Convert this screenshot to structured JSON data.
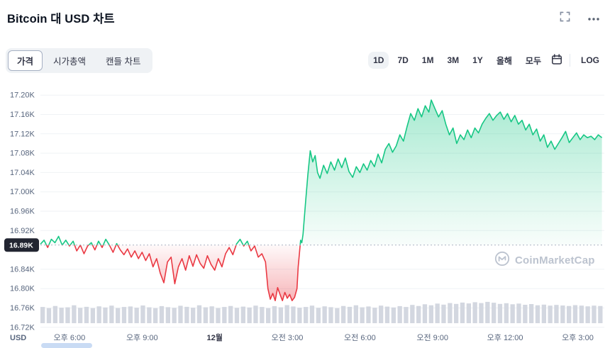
{
  "header": {
    "title": "Bitcoin 대 USD 차트"
  },
  "icons": {
    "fullscreen": "corner-brackets",
    "more_options": "ellipsis-dots",
    "calendar": "calendar-outline",
    "watermark_logo": "cmc-m-in-circle"
  },
  "toolbar": {
    "view_tabs": [
      {
        "label": "가격",
        "active": true
      },
      {
        "label": "시가총액",
        "active": false
      },
      {
        "label": "캔들 차트",
        "active": false
      }
    ],
    "range_buttons": [
      {
        "label": "1D",
        "active": true
      },
      {
        "label": "7D",
        "active": false
      },
      {
        "label": "1M",
        "active": false
      },
      {
        "label": "3M",
        "active": false
      },
      {
        "label": "1Y",
        "active": false
      },
      {
        "label": "올해",
        "active": false
      },
      {
        "label": "모두",
        "active": false
      }
    ],
    "log_label": "LOG"
  },
  "watermark": {
    "text": "CoinMarketCap"
  },
  "chart_data": {
    "type": "area",
    "title": "Bitcoin 대 USD 차트",
    "unit_label": "USD",
    "baseline": 16.89,
    "baseline_label": "16.89K",
    "xlim": [
      0,
      23.3
    ],
    "ylim": [
      16.705,
      17.215
    ],
    "grid": true,
    "y_ticks": [
      {
        "value": 17.2,
        "label": "17.20K"
      },
      {
        "value": 17.16,
        "label": "17.16K"
      },
      {
        "value": 17.12,
        "label": "17.12K"
      },
      {
        "value": 17.08,
        "label": "17.08K"
      },
      {
        "value": 17.04,
        "label": "17.04K"
      },
      {
        "value": 17.0,
        "label": "17.00K"
      },
      {
        "value": 16.96,
        "label": "16.96K"
      },
      {
        "value": 16.92,
        "label": "16.92K"
      },
      {
        "value": 16.84,
        "label": "16.84K"
      },
      {
        "value": 16.8,
        "label": "16.80K"
      },
      {
        "value": 16.76,
        "label": "16.76K"
      },
      {
        "value": 16.72,
        "label": "16.72K"
      }
    ],
    "x_ticks": [
      {
        "t": 1.2,
        "label": "오후 6:00",
        "bold": false
      },
      {
        "t": 4.2,
        "label": "오후 9:00",
        "bold": false
      },
      {
        "t": 7.2,
        "label": "12월",
        "bold": true
      },
      {
        "t": 10.2,
        "label": "오전 3:00",
        "bold": false
      },
      {
        "t": 13.2,
        "label": "오전 6:00",
        "bold": false
      },
      {
        "t": 16.2,
        "label": "오전 9:00",
        "bold": false
      },
      {
        "t": 19.2,
        "label": "오후 12:00",
        "bold": false
      },
      {
        "t": 22.2,
        "label": "오후 3:00",
        "bold": false
      }
    ],
    "colors": {
      "up": "#16c784",
      "down": "#ea3943",
      "grid": "#eff2f5",
      "axis_text": "#58667e",
      "badge_bg": "#222531",
      "volume": "#d3d7e0",
      "baseline_line": "#a9b1c1"
    },
    "series": [
      {
        "name": "BTC/USD price (K)",
        "points": [
          [
            0,
            16.892
          ],
          [
            0.15,
            16.9
          ],
          [
            0.3,
            16.885
          ],
          [
            0.45,
            16.902
          ],
          [
            0.6,
            16.895
          ],
          [
            0.75,
            16.908
          ],
          [
            0.9,
            16.89
          ],
          [
            1.05,
            16.9
          ],
          [
            1.2,
            16.888
          ],
          [
            1.35,
            16.898
          ],
          [
            1.5,
            16.878
          ],
          [
            1.65,
            16.89
          ],
          [
            1.8,
            16.872
          ],
          [
            1.95,
            16.888
          ],
          [
            2.1,
            16.895
          ],
          [
            2.25,
            16.88
          ],
          [
            2.4,
            16.898
          ],
          [
            2.55,
            16.885
          ],
          [
            2.7,
            16.902
          ],
          [
            2.85,
            16.89
          ],
          [
            3,
            16.875
          ],
          [
            3.15,
            16.893
          ],
          [
            3.3,
            16.88
          ],
          [
            3.45,
            16.87
          ],
          [
            3.6,
            16.882
          ],
          [
            3.75,
            16.865
          ],
          [
            3.9,
            16.878
          ],
          [
            4.05,
            16.862
          ],
          [
            4.2,
            16.875
          ],
          [
            4.35,
            16.858
          ],
          [
            4.5,
            16.872
          ],
          [
            4.65,
            16.845
          ],
          [
            4.8,
            16.862
          ],
          [
            4.95,
            16.832
          ],
          [
            5.1,
            16.812
          ],
          [
            5.25,
            16.855
          ],
          [
            5.4,
            16.865
          ],
          [
            5.55,
            16.81
          ],
          [
            5.7,
            16.845
          ],
          [
            5.85,
            16.862
          ],
          [
            6,
            16.838
          ],
          [
            6.15,
            16.868
          ],
          [
            6.3,
            16.846
          ],
          [
            6.45,
            16.87
          ],
          [
            6.6,
            16.852
          ],
          [
            6.75,
            16.842
          ],
          [
            6.9,
            16.868
          ],
          [
            7.05,
            16.85
          ],
          [
            7.2,
            16.838
          ],
          [
            7.35,
            16.862
          ],
          [
            7.5,
            16.845
          ],
          [
            7.65,
            16.872
          ],
          [
            7.8,
            16.885
          ],
          [
            7.95,
            16.87
          ],
          [
            8.1,
            16.892
          ],
          [
            8.25,
            16.902
          ],
          [
            8.4,
            16.888
          ],
          [
            8.55,
            16.898
          ],
          [
            8.7,
            16.878
          ],
          [
            8.85,
            16.888
          ],
          [
            9,
            16.865
          ],
          [
            9.15,
            16.872
          ],
          [
            9.3,
            16.855
          ],
          [
            9.4,
            16.8
          ],
          [
            9.5,
            16.778
          ],
          [
            9.6,
            16.79
          ],
          [
            9.7,
            16.775
          ],
          [
            9.8,
            16.802
          ],
          [
            9.9,
            16.788
          ],
          [
            10,
            16.775
          ],
          [
            10.1,
            16.792
          ],
          [
            10.2,
            16.78
          ],
          [
            10.3,
            16.788
          ],
          [
            10.4,
            16.775
          ],
          [
            10.5,
            16.782
          ],
          [
            10.6,
            16.8
          ],
          [
            10.65,
            16.845
          ],
          [
            10.7,
            16.872
          ],
          [
            10.75,
            16.9
          ],
          [
            10.8,
            16.895
          ],
          [
            10.85,
            16.912
          ],
          [
            10.95,
            16.975
          ],
          [
            11.05,
            17.035
          ],
          [
            11.15,
            17.085
          ],
          [
            11.25,
            17.062
          ],
          [
            11.35,
            17.075
          ],
          [
            11.45,
            17.04
          ],
          [
            11.55,
            17.028
          ],
          [
            11.7,
            17.055
          ],
          [
            11.85,
            17.038
          ],
          [
            12,
            17.062
          ],
          [
            12.15,
            17.045
          ],
          [
            12.3,
            17.068
          ],
          [
            12.45,
            17.05
          ],
          [
            12.6,
            17.07
          ],
          [
            12.75,
            17.042
          ],
          [
            12.9,
            17.03
          ],
          [
            13.05,
            17.052
          ],
          [
            13.2,
            17.04
          ],
          [
            13.35,
            17.058
          ],
          [
            13.5,
            17.045
          ],
          [
            13.65,
            17.065
          ],
          [
            13.8,
            17.052
          ],
          [
            13.95,
            17.078
          ],
          [
            14.1,
            17.06
          ],
          [
            14.25,
            17.088
          ],
          [
            14.4,
            17.1
          ],
          [
            14.55,
            17.082
          ],
          [
            14.7,
            17.095
          ],
          [
            14.85,
            17.118
          ],
          [
            15,
            17.105
          ],
          [
            15.15,
            17.135
          ],
          [
            15.3,
            17.162
          ],
          [
            15.45,
            17.148
          ],
          [
            15.6,
            17.172
          ],
          [
            15.75,
            17.155
          ],
          [
            15.9,
            17.178
          ],
          [
            16.05,
            17.165
          ],
          [
            16.15,
            17.19
          ],
          [
            16.3,
            17.172
          ],
          [
            16.45,
            17.155
          ],
          [
            16.6,
            17.168
          ],
          [
            16.75,
            17.14
          ],
          [
            16.9,
            17.118
          ],
          [
            17.05,
            17.132
          ],
          [
            17.2,
            17.1
          ],
          [
            17.35,
            17.118
          ],
          [
            17.5,
            17.108
          ],
          [
            17.65,
            17.128
          ],
          [
            17.8,
            17.112
          ],
          [
            17.95,
            17.132
          ],
          [
            18.1,
            17.122
          ],
          [
            18.25,
            17.14
          ],
          [
            18.4,
            17.152
          ],
          [
            18.55,
            17.162
          ],
          [
            18.7,
            17.148
          ],
          [
            18.85,
            17.158
          ],
          [
            19,
            17.165
          ],
          [
            19.15,
            17.15
          ],
          [
            19.3,
            17.162
          ],
          [
            19.45,
            17.145
          ],
          [
            19.6,
            17.158
          ],
          [
            19.75,
            17.14
          ],
          [
            19.9,
            17.148
          ],
          [
            20.05,
            17.128
          ],
          [
            20.2,
            17.14
          ],
          [
            20.35,
            17.118
          ],
          [
            20.5,
            17.13
          ],
          [
            20.65,
            17.105
          ],
          [
            20.8,
            17.118
          ],
          [
            20.95,
            17.092
          ],
          [
            21.1,
            17.105
          ],
          [
            21.25,
            17.088
          ],
          [
            21.4,
            17.1
          ],
          [
            21.55,
            17.112
          ],
          [
            21.7,
            17.125
          ],
          [
            21.85,
            17.102
          ],
          [
            22,
            17.112
          ],
          [
            22.15,
            17.122
          ],
          [
            22.3,
            17.108
          ],
          [
            22.45,
            17.118
          ],
          [
            22.6,
            17.112
          ],
          [
            22.75,
            17.115
          ],
          [
            22.9,
            17.108
          ],
          [
            23.05,
            17.118
          ],
          [
            23.2,
            17.112
          ]
        ]
      }
    ],
    "volume": [
      0.62,
      0.55,
      0.68,
      0.58,
      0.6,
      0.72,
      0.57,
      0.63,
      0.55,
      0.66,
      0.59,
      0.7,
      0.56,
      0.62,
      0.65,
      0.58,
      0.71,
      0.6,
      0.55,
      0.67,
      0.61,
      0.57,
      0.69,
      0.63,
      0.58,
      0.72,
      0.6,
      0.66,
      0.56,
      0.62,
      0.68,
      0.57,
      0.64,
      0.59,
      0.7,
      0.62,
      0.55,
      0.67,
      0.6,
      0.73,
      0.65,
      0.58,
      0.62,
      0.7,
      0.57,
      0.66,
      0.61,
      0.55,
      0.68,
      0.63,
      0.72,
      0.6,
      0.65,
      0.58,
      0.7,
      0.64,
      0.59,
      0.67,
      0.62,
      0.74,
      0.68,
      0.78,
      0.72,
      0.82,
      0.76,
      0.85,
      0.8,
      0.88,
      0.83,
      0.9,
      0.85,
      0.92,
      0.87,
      0.8,
      0.84,
      0.78,
      0.82,
      0.75,
      0.79,
      0.72,
      0.76,
      0.7,
      0.74,
      0.71,
      0.68,
      0.73,
      0.7,
      0.66,
      0.7,
      0.68
    ]
  }
}
